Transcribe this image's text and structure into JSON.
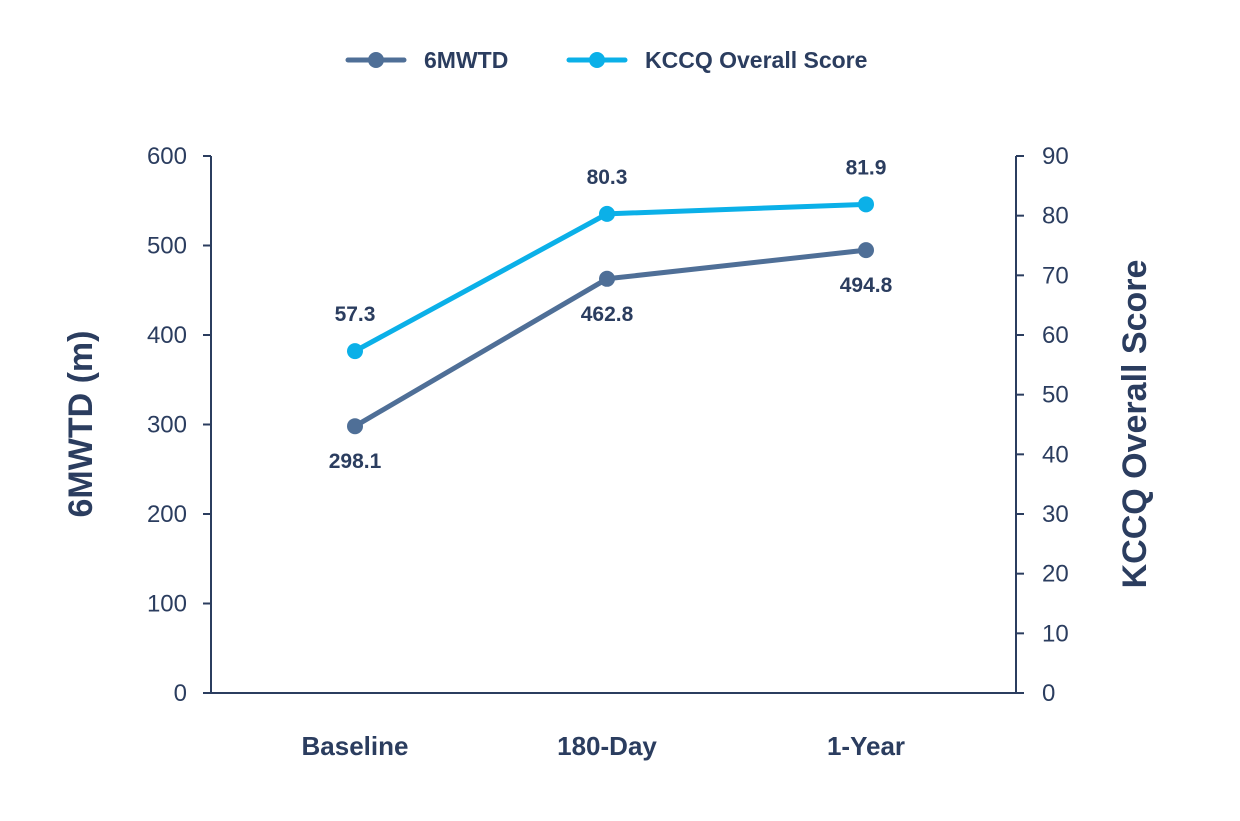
{
  "chart_data": {
    "type": "line",
    "categories": [
      "Baseline",
      "180-Day",
      "1-Year"
    ],
    "series": [
      {
        "name": "6MWTD",
        "axis": "left",
        "values": [
          298.1,
          462.8,
          494.8
        ],
        "labels": [
          "298.1",
          "462.8",
          "494.8"
        ],
        "color": "#4f6f97"
      },
      {
        "name": "KCCQ Overall Score",
        "axis": "right",
        "values": [
          57.3,
          80.3,
          81.9
        ],
        "labels": [
          "57.3",
          "80.3",
          "81.9"
        ],
        "color": "#0bb0e8"
      }
    ],
    "ylabel": "6MWTD (m)",
    "y2label": "KCCQ Overall Score",
    "ylim": [
      0,
      600
    ],
    "y2lim": [
      0,
      90
    ],
    "yticks": [
      "0",
      "100",
      "200",
      "300",
      "400",
      "500",
      "600"
    ],
    "y2ticks": [
      "0",
      "10",
      "20",
      "30",
      "40",
      "50",
      "60",
      "70",
      "80",
      "90"
    ],
    "legend_position": "top-center",
    "grid": false,
    "axis_color": "#2b3d5f"
  }
}
